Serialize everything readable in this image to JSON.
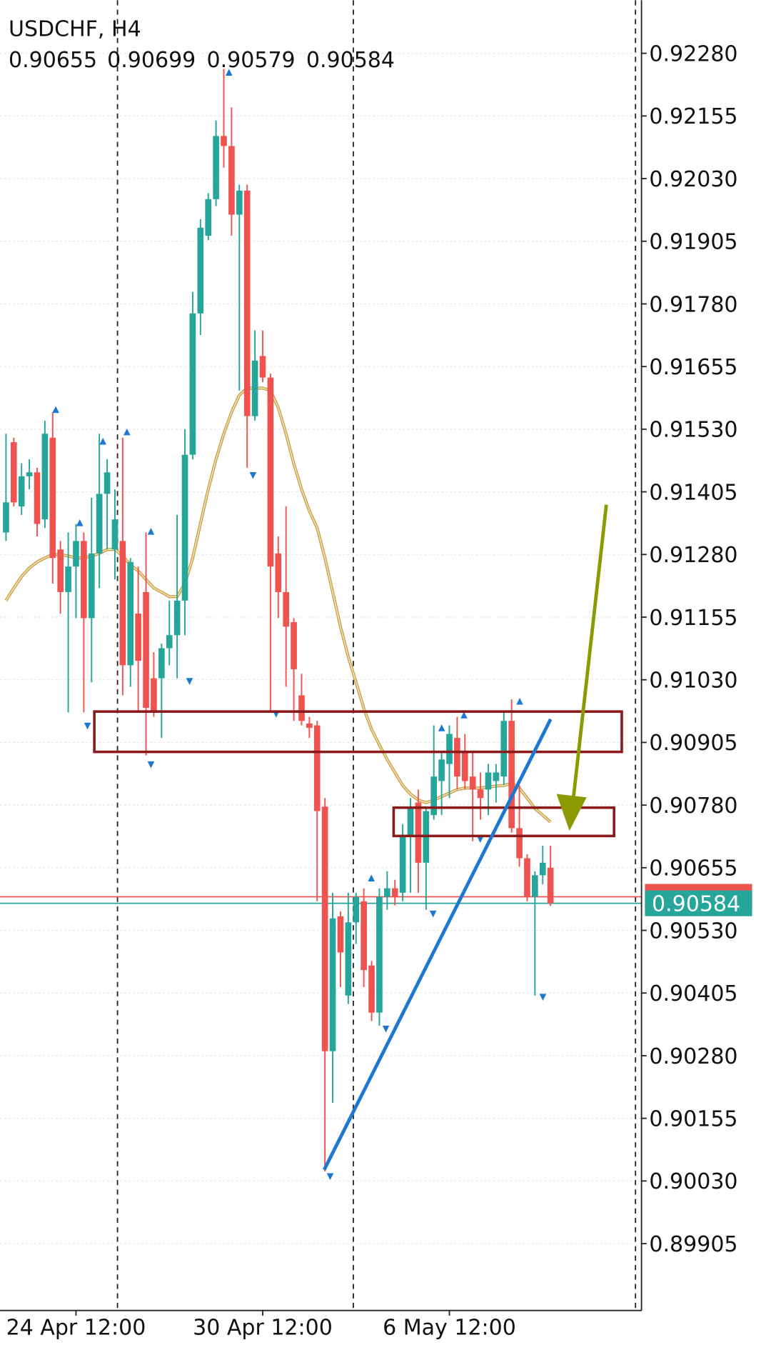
{
  "chart_data": {
    "type": "candlestick",
    "title": "USDCHF, H4",
    "categories": [
      null,
      null,
      null,
      null,
      null,
      null,
      null,
      null,
      null,
      "24 Apr 12:00",
      null,
      null,
      null,
      null,
      null,
      null,
      null,
      null,
      null,
      null,
      null,
      null,
      null,
      null,
      null,
      null,
      null,
      null,
      null,
      null,
      null,
      null,
      null,
      "30 Apr 12:00",
      null,
      null,
      null,
      null,
      null,
      null,
      null,
      null,
      null,
      null,
      null,
      null,
      null,
      null,
      null,
      null,
      null,
      null,
      null,
      null,
      null,
      null,
      null,
      "6 May 12:00",
      null,
      null,
      null,
      null,
      null,
      null,
      null,
      null,
      null,
      null,
      null,
      null,
      null
    ],
    "open": [
      0.91324,
      0.91504,
      0.91376,
      0.91436,
      0.91444,
      0.9135,
      0.91513,
      0.9129,
      0.91205,
      0.91256,
      0.91307,
      0.91153,
      0.91282,
      0.91401,
      0.9129,
      0.91307,
      0.91059,
      0.91162,
      0.91205,
      0.91033,
      0.91033,
      0.91093,
      0.91119,
      0.91188,
      0.91479,
      0.91761,
      0.91916,
      0.91989,
      0.92115,
      0.92095,
      0.91958,
      0.92006,
      0.91556,
      0.91676,
      0.91633,
      0.91282,
      0.91205,
      0.91145,
      0.90999,
      0.90943,
      0.90939,
      0.90777,
      0.90289,
      0.90558,
      0.904,
      0.90546,
      0.90588,
      0.9046,
      0.90366,
      0.90597,
      0.90614,
      0.90605,
      0.90717,
      0.90785,
      0.90665,
      0.9076,
      0.90828,
      0.90862,
      0.90914,
      0.90888,
      0.90837,
      0.90811,
      0.90811,
      0.90828,
      0.90837,
      0.90948,
      0.90734,
      0.90674,
      0.90597,
      0.9064,
      0.90655
    ],
    "high": [
      0.91521,
      0.91513,
      0.91462,
      0.9147,
      0.91453,
      0.91547,
      0.91564,
      0.91307,
      0.91324,
      0.91341,
      0.91324,
      0.91393,
      0.91521,
      0.9147,
      0.9141,
      0.91513,
      0.91273,
      0.91256,
      0.91324,
      0.91085,
      0.91102,
      0.91188,
      0.91359,
      0.9153,
      0.91804,
      0.91949,
      0.92001,
      0.92146,
      0.92249,
      0.92172,
      0.92018,
      0.92018,
      0.91727,
      0.91727,
      0.91641,
      0.91316,
      0.91376,
      0.91153,
      0.91042,
      0.90956,
      0.90948,
      0.90794,
      0.90605,
      0.90568,
      0.90605,
      0.90605,
      0.90614,
      0.90469,
      0.90614,
      0.90648,
      0.90631,
      0.90742,
      0.90794,
      0.90811,
      0.90777,
      0.90939,
      0.90888,
      0.90939,
      0.90956,
      0.90922,
      0.90888,
      0.90845,
      0.90862,
      0.90862,
      0.90965,
      0.90991,
      0.9082,
      0.90682,
      0.90648,
      0.90699,
      0.90699
    ],
    "low": [
      0.91307,
      0.91376,
      0.91359,
      0.9141,
      0.91316,
      0.91333,
      0.91222,
      0.91162,
      0.90965,
      0.91153,
      0.90965,
      0.91025,
      0.91213,
      0.9129,
      0.9123,
      0.90999,
      0.91016,
      0.90965,
      0.90879,
      0.90956,
      0.90914,
      0.91059,
      0.91033,
      0.91119,
      0.9147,
      0.91718,
      0.91907,
      0.91975,
      0.92052,
      0.91916,
      0.91607,
      0.91453,
      0.91547,
      0.91624,
      0.90965,
      0.91153,
      0.91016,
      0.90948,
      0.90939,
      0.90914,
      0.90588,
      0.90049,
      0.90186,
      0.90417,
      0.90383,
      0.90503,
      0.90417,
      0.90349,
      0.9034,
      0.90571,
      0.9058,
      0.90588,
      0.90605,
      0.90605,
      0.90571,
      0.90751,
      0.9076,
      0.90794,
      0.90811,
      0.90811,
      0.90708,
      0.90751,
      0.9076,
      0.90785,
      0.9082,
      0.90725,
      0.90657,
      0.90588,
      0.904,
      0.90622,
      0.90579
    ],
    "close": [
      0.91384,
      0.91384,
      0.91436,
      0.91444,
      0.91341,
      0.91521,
      0.91273,
      0.91205,
      0.91256,
      0.91307,
      0.91153,
      0.91282,
      0.91401,
      0.91444,
      0.9135,
      0.91059,
      0.91265,
      0.91068,
      0.90974,
      0.90965,
      0.91093,
      0.91119,
      0.91188,
      0.91479,
      0.91761,
      0.91932,
      0.91989,
      0.92115,
      0.92095,
      0.91958,
      0.92006,
      0.91556,
      0.91667,
      0.91633,
      0.91256,
      0.91205,
      0.91136,
      0.91051,
      0.90948,
      0.90934,
      0.90768,
      0.90289,
      0.90554,
      0.90486,
      0.90546,
      0.90597,
      0.90451,
      0.90366,
      0.90597,
      0.90614,
      0.90597,
      0.90717,
      0.90777,
      0.90665,
      0.90768,
      0.90837,
      0.90871,
      0.90922,
      0.90837,
      0.90828,
      0.90811,
      0.90794,
      0.90845,
      0.90845,
      0.90948,
      0.90734,
      0.90674,
      0.90597,
      0.9064,
      0.90665,
      0.90584
    ],
    "up_color": "#26a69a",
    "down_color": "#ef5350",
    "moving_average": {
      "color": "#c9a04a",
      "values": [
        0.91188,
        0.91213,
        0.91236,
        0.91253,
        0.91265,
        0.91273,
        0.9128,
        0.9128,
        0.91277,
        0.91273,
        0.91273,
        0.91277,
        0.91282,
        0.9129,
        0.9129,
        0.91277,
        0.91259,
        0.91247,
        0.9123,
        0.91213,
        0.91205,
        0.91196,
        0.91196,
        0.91222,
        0.91273,
        0.91342,
        0.9141,
        0.9147,
        0.91521,
        0.91564,
        0.91598,
        0.91612,
        0.91612,
        0.91612,
        0.91607,
        0.91573,
        0.91521,
        0.91461,
        0.9141,
        0.91367,
        0.91333,
        0.91273,
        0.91205,
        0.91136,
        0.91076,
        0.91025,
        0.90973,
        0.90931,
        0.909,
        0.90871,
        0.90845,
        0.90819,
        0.90802,
        0.9079,
        0.90785,
        0.9079,
        0.90797,
        0.90804,
        0.90811,
        0.90814,
        0.90814,
        0.90814,
        0.90816,
        0.90818,
        0.90819,
        0.90824,
        0.90814,
        0.90794,
        0.90773,
        0.9076,
        0.90746
      ]
    },
    "price_lines": [
      {
        "value": 0.90597,
        "color": "#ef5350"
      },
      {
        "value": 0.90584,
        "color": "#26a69a"
      }
    ],
    "ylim": [
      0.89775,
      0.92386
    ],
    "yticks": [
      {
        "value": 0.9228,
        "label": "0.92280"
      },
      0.92155,
      {
        "value": 0.9203,
        "label": "0.92030"
      },
      0.91905,
      {
        "value": 0.9178,
        "label": "0.91780"
      },
      0.91655,
      {
        "value": 0.9153,
        "label": "0.91530"
      },
      0.91405,
      {
        "value": 0.9128,
        "label": "0.91280"
      },
      0.91155,
      {
        "value": 0.9103,
        "label": "0.91030"
      },
      0.90905,
      {
        "value": 0.9078,
        "label": "0.90780"
      },
      0.90655,
      {
        "value": 0.9053,
        "label": "0.90530"
      },
      0.90405,
      {
        "value": 0.9028,
        "label": "0.90280"
      },
      0.90155,
      {
        "value": 0.9003,
        "label": "0.90030"
      },
      0.89905
    ],
    "grid": true
  }
}
